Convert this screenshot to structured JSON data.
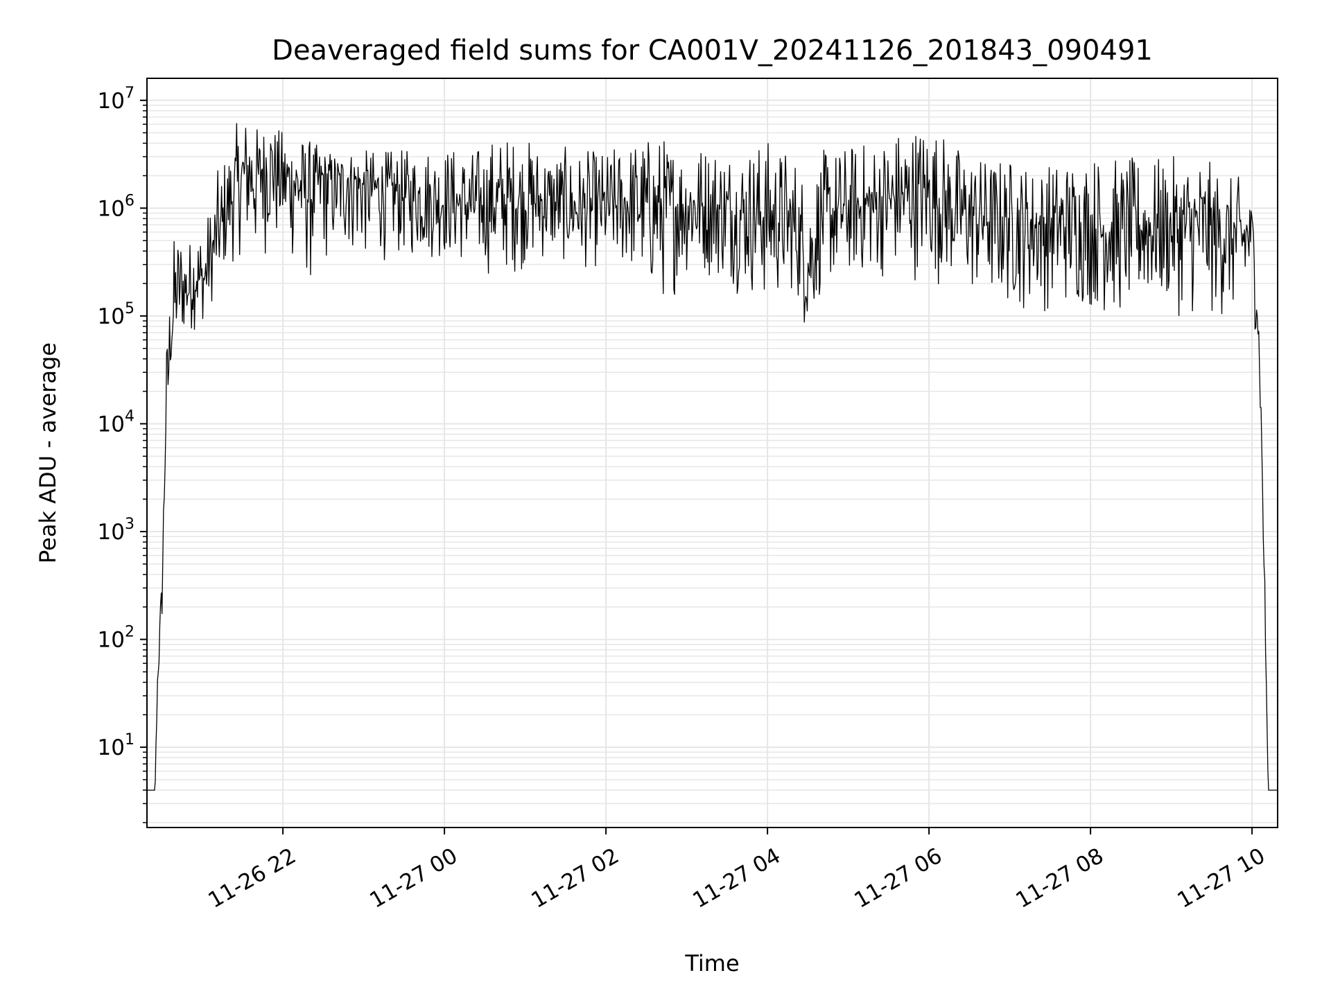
{
  "chart_data": {
    "type": "line",
    "title": "Deaveraged field sums for CA001V_20241126_201843_090491",
    "xlabel": "Time",
    "ylabel": "Peak ADU - average",
    "y_scale": "log",
    "ylim": [
      1.8,
      16000000
    ],
    "xlim": [
      "2024-11-26 20:19",
      "2024-11-27 10:19"
    ],
    "x_ticks": [
      "2024-11-26 22:00",
      "2024-11-27 00:00",
      "2024-11-27 02:00",
      "2024-11-27 04:00",
      "2024-11-27 06:00",
      "2024-11-27 08:00",
      "2024-11-27 10:00"
    ],
    "x_tick_labels": [
      "11-26 22",
      "11-27 00",
      "11-27 02",
      "11-27 04",
      "11-27 06",
      "11-27 08",
      "11-27 10"
    ],
    "y_tick_labels": [
      {
        "base": "10",
        "exp": "1",
        "value": 10
      },
      {
        "base": "10",
        "exp": "2",
        "value": 100
      },
      {
        "base": "10",
        "exp": "3",
        "value": 1000
      },
      {
        "base": "10",
        "exp": "4",
        "value": 10000
      },
      {
        "base": "10",
        "exp": "5",
        "value": 100000
      },
      {
        "base": "10",
        "exp": "6",
        "value": 1000000
      },
      {
        "base": "10",
        "exp": "7",
        "value": 10000000
      }
    ],
    "grid": true,
    "line_color": "#000000",
    "grid_color": "#e6e6e6",
    "series": [
      {
        "x": [
          "2024-11-26 20:19",
          "2024-11-26 20:22",
          "2024-11-26 20:25",
          "2024-11-26 20:27",
          "2024-11-26 20:30",
          "2024-11-26 20:33",
          "2024-11-26 20:36",
          "2024-11-26 20:40",
          "2024-11-26 20:45",
          "2024-11-26 20:50",
          "2024-11-26 20:55",
          "2024-11-26 21:00",
          "2024-11-26 21:05",
          "2024-11-26 21:10",
          "2024-11-26 21:15",
          "2024-11-26 21:20",
          "2024-11-26 21:25",
          "2024-11-26 21:30",
          "2024-11-26 21:35",
          "2024-11-26 21:40",
          "2024-11-26 21:45",
          "2024-11-26 21:50",
          "2024-11-26 21:55",
          "2024-11-26 22:00",
          "2024-11-26 22:10",
          "2024-11-26 22:20",
          "2024-11-26 22:30",
          "2024-11-26 22:40",
          "2024-11-26 22:50",
          "2024-11-26 23:00",
          "2024-11-26 23:15",
          "2024-11-26 23:30",
          "2024-11-26 23:45",
          "2024-11-27 00:00",
          "2024-11-27 00:20",
          "2024-11-27 00:40",
          "2024-11-27 01:00",
          "2024-11-27 01:20",
          "2024-11-27 01:40",
          "2024-11-27 02:00",
          "2024-11-27 02:20",
          "2024-11-27 02:40",
          "2024-11-27 03:00",
          "2024-11-27 03:20",
          "2024-11-27 03:40",
          "2024-11-27 04:00",
          "2024-11-27 04:20",
          "2024-11-27 04:30",
          "2024-11-27 04:40",
          "2024-11-27 05:00",
          "2024-11-27 05:20",
          "2024-11-27 05:40",
          "2024-11-27 06:00",
          "2024-11-27 06:20",
          "2024-11-27 06:40",
          "2024-11-27 07:00",
          "2024-11-27 07:20",
          "2024-11-27 07:40",
          "2024-11-27 08:00",
          "2024-11-27 08:20",
          "2024-11-27 08:40",
          "2024-11-27 09:00",
          "2024-11-27 09:20",
          "2024-11-27 09:40",
          "2024-11-27 09:55",
          "2024-11-27 10:00",
          "2024-11-27 10:03",
          "2024-11-27 10:06",
          "2024-11-27 10:09",
          "2024-11-27 10:12",
          "2024-11-27 10:14",
          "2024-11-27 10:19"
        ],
        "y": [
          4,
          4,
          4,
          50,
          200,
          10000,
          50000,
          150000,
          200000,
          180000,
          250000,
          200000,
          300000,
          500000,
          700000,
          1200000,
          1500000,
          2000000,
          2500000,
          1800000,
          2500000,
          3000000,
          2500000,
          2000000,
          1800000,
          1500000,
          2000000,
          1700000,
          2000000,
          1600000,
          1500000,
          1400000,
          1300000,
          1200000,
          1100000,
          1200000,
          1300000,
          1100000,
          1000000,
          1000000,
          1200000,
          1000000,
          1100000,
          1000000,
          900000,
          900000,
          700000,
          300000,
          800000,
          1000000,
          1100000,
          1300000,
          1400000,
          1000000,
          900000,
          800000,
          700000,
          750000,
          700000,
          600000,
          700000,
          650000,
          700000,
          600000,
          550000,
          700000,
          300000,
          30000,
          500,
          4,
          4,
          4
        ],
        "envelope_high": [
          4,
          4,
          4,
          80,
          500,
          50000,
          250000,
          700000,
          700000,
          500000,
          800000,
          800000,
          1000000,
          2000000,
          3000000,
          4000000,
          6000000,
          8000000,
          7000000,
          6000000,
          6000000,
          7000000,
          5500000,
          5500000,
          5000000,
          4500000,
          3500000,
          3500000,
          3500000,
          3500000,
          3500000,
          3500000,
          4000000,
          4000000,
          3500000,
          5000000,
          4500000,
          4000000,
          3500000,
          3500000,
          4500000,
          5000000,
          4000000,
          4500000,
          4000000,
          4500000,
          3500000,
          2000000,
          3500000,
          4000000,
          4500000,
          6000000,
          7000000,
          4000000,
          3000000,
          3000000,
          2500000,
          3000000,
          3500000,
          3000000,
          3000000,
          3000000,
          3500000,
          2000000,
          2000000,
          1000000,
          500000,
          50000,
          1000,
          4,
          4,
          4
        ],
        "envelope_low": [
          4,
          4,
          4,
          30,
          100,
          5000,
          25000,
          40000,
          50000,
          60000,
          70000,
          80000,
          100000,
          150000,
          200000,
          250000,
          300000,
          350000,
          300000,
          250000,
          300000,
          350000,
          300000,
          300000,
          250000,
          150000,
          250000,
          300000,
          300000,
          280000,
          300000,
          300000,
          300000,
          300000,
          250000,
          200000,
          250000,
          300000,
          250000,
          250000,
          200000,
          100000,
          200000,
          200000,
          150000,
          100000,
          150000,
          50000,
          150000,
          200000,
          200000,
          200000,
          200000,
          150000,
          100000,
          100000,
          100000,
          100000,
          100000,
          80000,
          100000,
          100000,
          80000,
          80000,
          70000,
          100000,
          60000,
          10000,
          200,
          4,
          4,
          4
        ]
      }
    ]
  }
}
